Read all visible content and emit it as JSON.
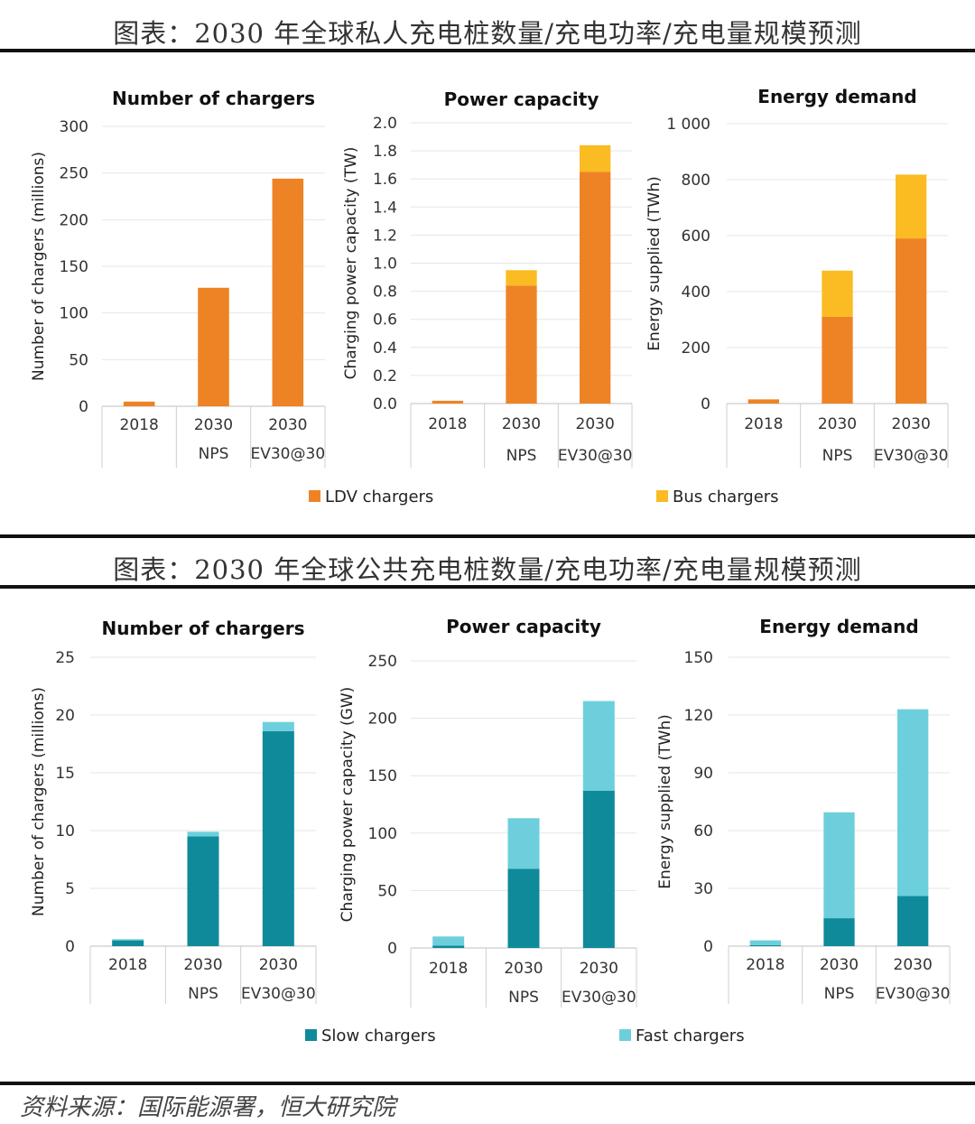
{
  "sections": [
    {
      "title": "图表：2030 年全球私人充电桩数量/充电功率/充电量规模预测",
      "legend": [
        {
          "label": "LDV chargers",
          "color": "#ee8326"
        },
        {
          "label": "Bus chargers",
          "color": "#fbbb22"
        }
      ]
    },
    {
      "title": "图表：2030 年全球公共充电桩数量/充电功率/充电量规模预测",
      "legend": [
        {
          "label": "Slow chargers",
          "color": "#0f8a9a"
        },
        {
          "label": "Fast chargers",
          "color": "#6dcfdc"
        }
      ]
    }
  ],
  "source": "资料来源：国际能源署，恒大研究院",
  "chart_data": [
    {
      "type": "bar",
      "stacked": true,
      "title": "Number of chargers",
      "ylabel": "Number of chargers (millions)",
      "ylim": [
        0,
        300
      ],
      "yticks": [
        "0",
        "50",
        "100",
        "150",
        "200",
        "250",
        "300"
      ],
      "categories": [
        [
          "2018",
          ""
        ],
        [
          "2030",
          "NPS"
        ],
        [
          "2030",
          "EV30@30"
        ]
      ],
      "series": [
        {
          "name": "LDV chargers",
          "color": "#ee8326",
          "values": [
            5,
            127,
            244
          ]
        },
        {
          "name": "Bus chargers",
          "color": "#fbbb22",
          "values": [
            0,
            0,
            0
          ]
        }
      ]
    },
    {
      "type": "bar",
      "stacked": true,
      "title": "Power capacity",
      "ylabel": "Charging power capacity (TW)",
      "ylim": [
        0,
        2.0
      ],
      "yticks": [
        "0.0",
        "0.2",
        "0.4",
        "0.6",
        "0.8",
        "1.0",
        "1.2",
        "1.4",
        "1.6",
        "1.8",
        "2.0"
      ],
      "categories": [
        [
          "2018",
          ""
        ],
        [
          "2030",
          "NPS"
        ],
        [
          "2030",
          "EV30@30"
        ]
      ],
      "series": [
        {
          "name": "LDV chargers",
          "color": "#ee8326",
          "values": [
            0.02,
            0.84,
            1.65
          ]
        },
        {
          "name": "Bus chargers",
          "color": "#fbbb22",
          "values": [
            0.0,
            0.11,
            0.19
          ]
        }
      ]
    },
    {
      "type": "bar",
      "stacked": true,
      "title": "Energy demand",
      "ylabel": "Energy supplied (TWh)",
      "ylim": [
        0,
        1000
      ],
      "yticks": [
        "0",
        "200",
        "400",
        "600",
        "800",
        "1 000"
      ],
      "categories": [
        [
          "2018",
          ""
        ],
        [
          "2030",
          "NPS"
        ],
        [
          "2030",
          "EV30@30"
        ]
      ],
      "series": [
        {
          "name": "LDV chargers",
          "color": "#ee8326",
          "values": [
            15,
            310,
            590
          ]
        },
        {
          "name": "Bus chargers",
          "color": "#fbbb22",
          "values": [
            0,
            165,
            228
          ]
        }
      ]
    },
    {
      "type": "bar",
      "stacked": true,
      "title": "Number of chargers",
      "ylabel": "Number of chargers (millions)",
      "ylim": [
        0,
        25
      ],
      "yticks": [
        "0",
        "5",
        "10",
        "15",
        "20",
        "25"
      ],
      "categories": [
        [
          "2018",
          ""
        ],
        [
          "2030",
          "NPS"
        ],
        [
          "2030",
          "EV30@30"
        ]
      ],
      "series": [
        {
          "name": "Slow chargers",
          "color": "#0f8a9a",
          "values": [
            0.5,
            9.5,
            18.6
          ]
        },
        {
          "name": "Fast chargers",
          "color": "#6dcfdc",
          "values": [
            0.1,
            0.4,
            0.8
          ]
        }
      ]
    },
    {
      "type": "bar",
      "stacked": true,
      "title": "Power capacity",
      "ylabel": "Charging power capacity (GW)",
      "ylim": [
        0,
        250
      ],
      "yticks": [
        "0",
        "50",
        "100",
        "150",
        "200",
        "250"
      ],
      "categories": [
        [
          "2018",
          ""
        ],
        [
          "2030",
          "NPS"
        ],
        [
          "2030",
          "EV30@30"
        ]
      ],
      "series": [
        {
          "name": "Slow chargers",
          "color": "#0f8a9a",
          "values": [
            2,
            69,
            137
          ]
        },
        {
          "name": "Fast chargers",
          "color": "#6dcfdc",
          "values": [
            8,
            44,
            78
          ]
        }
      ]
    },
    {
      "type": "bar",
      "stacked": true,
      "title": "Energy demand",
      "ylabel": "Energy supplied (TWh)",
      "ylim": [
        0,
        150
      ],
      "yticks": [
        "0",
        "30",
        "60",
        "90",
        "120",
        "150"
      ],
      "categories": [
        [
          "2018",
          ""
        ],
        [
          "2030",
          "NPS"
        ],
        [
          "2030",
          "EV30@30"
        ]
      ],
      "series": [
        {
          "name": "Slow chargers",
          "color": "#0f8a9a",
          "values": [
            0.5,
            14.5,
            26
          ]
        },
        {
          "name": "Fast chargers",
          "color": "#6dcfdc",
          "values": [
            2.5,
            55,
            97
          ]
        }
      ]
    }
  ]
}
